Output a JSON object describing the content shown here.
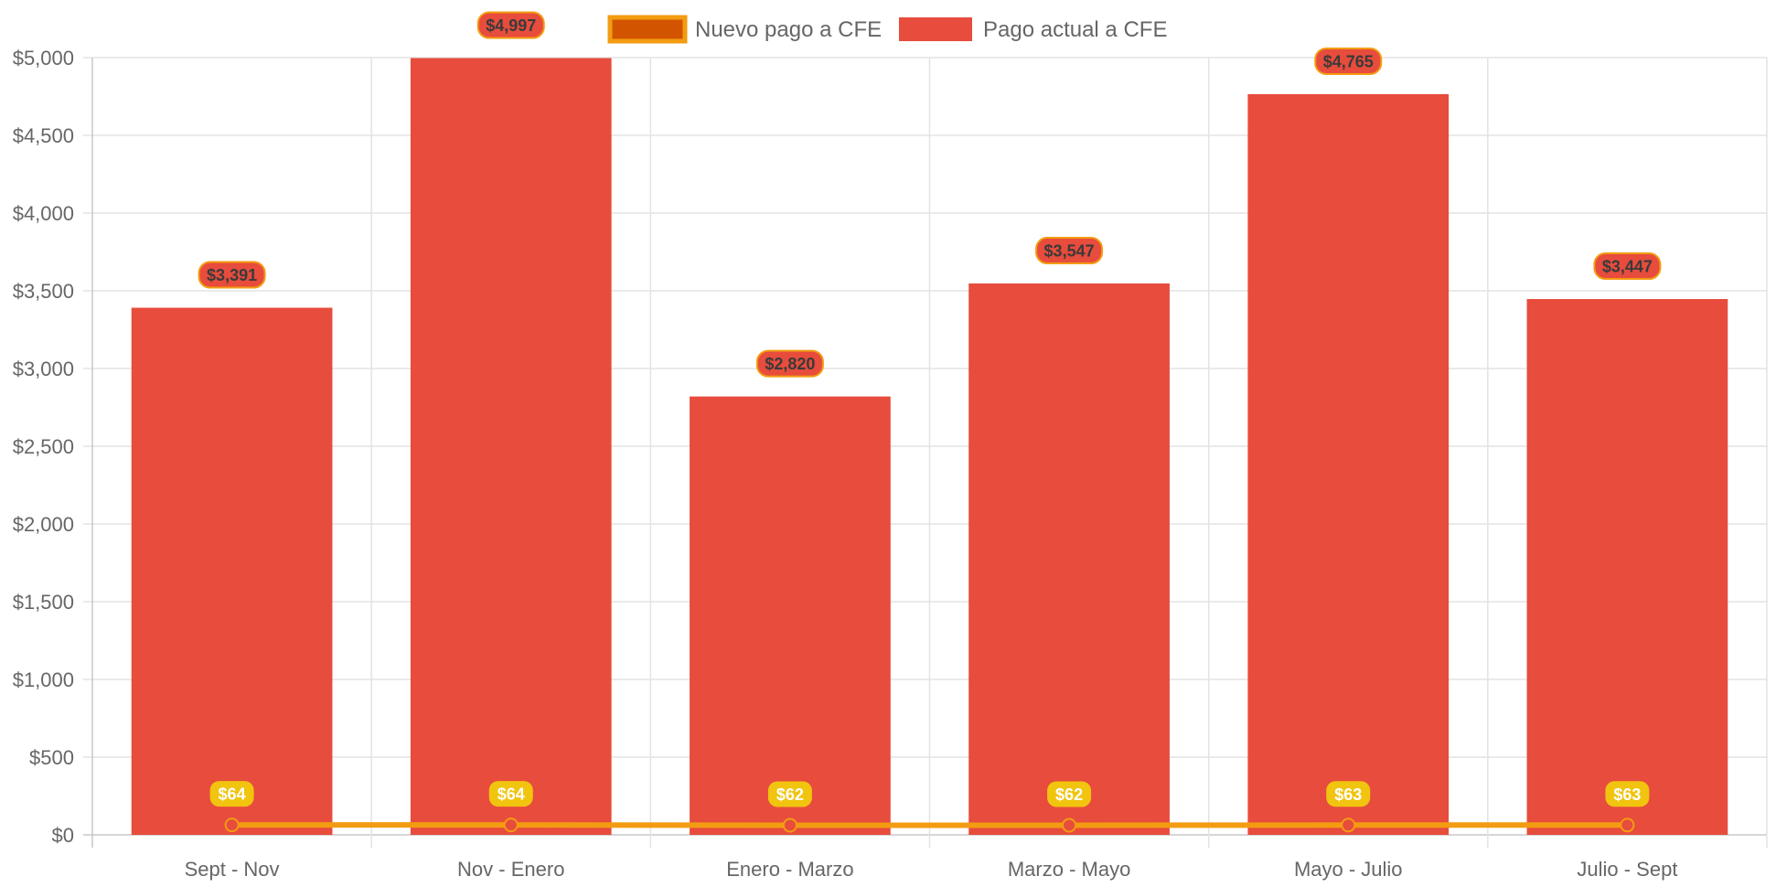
{
  "chart_data": {
    "type": "bar",
    "categories": [
      "Sept - Nov",
      "Nov - Enero",
      "Enero - Marzo",
      "Marzo - Mayo",
      "Mayo - Julio",
      "Julio - Sept"
    ],
    "series": [
      {
        "name": "Nuevo pago a CFE",
        "type": "line",
        "values": [
          64,
          64,
          62,
          62,
          63,
          63
        ],
        "labels": [
          "$64",
          "$64",
          "$62",
          "$62",
          "$63",
          "$63"
        ],
        "color": "#f39c12",
        "fill_color": "#d35400",
        "label_color": "#f1c40f"
      },
      {
        "name": "Pago actual a CFE",
        "type": "bar",
        "values": [
          3391,
          4997,
          2820,
          3547,
          4765,
          3447
        ],
        "labels": [
          "$3,391",
          "$4,997",
          "$2,820",
          "$3,547",
          "$4,765",
          "$3,447"
        ],
        "color": "#e74c3c",
        "label_border_color": "#f39c12"
      }
    ],
    "ylim": [
      0,
      5000
    ],
    "y_ticks": [
      0,
      500,
      1000,
      1500,
      2000,
      2500,
      3000,
      3500,
      4000,
      4500,
      5000
    ],
    "y_tick_labels": [
      "$0",
      "$500",
      "$1,000",
      "$1,500",
      "$2,000",
      "$2,500",
      "$3,000",
      "$3,500",
      "$4,000",
      "$4,500",
      "$5,000"
    ],
    "grid": true,
    "legend_position": "top",
    "title": "",
    "xlabel": "",
    "ylabel": ""
  }
}
